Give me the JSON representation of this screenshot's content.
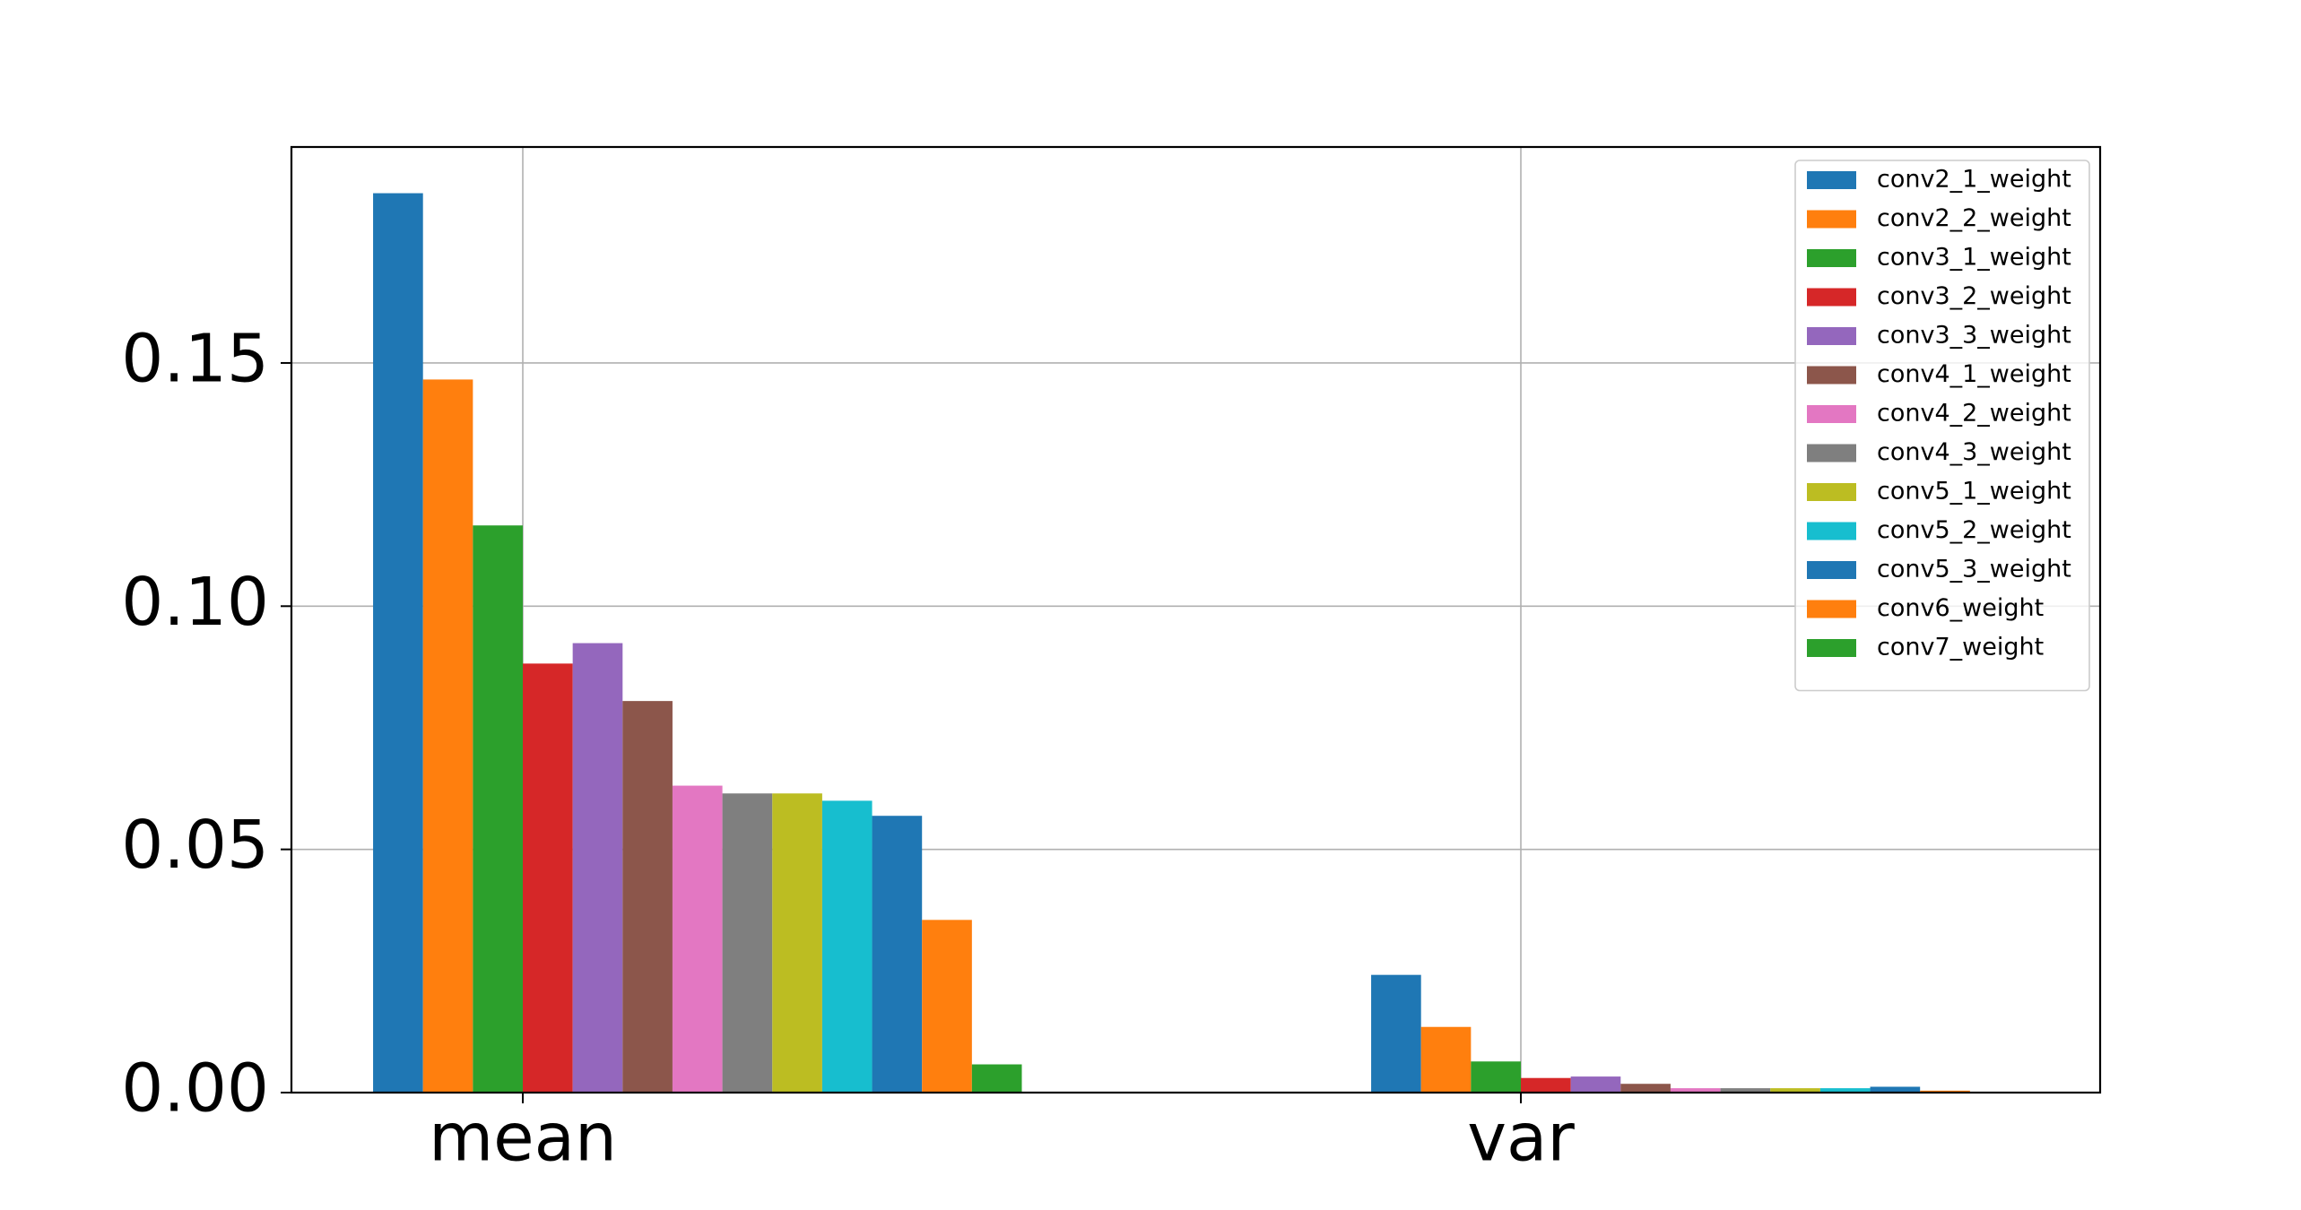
{
  "chart_data": {
    "type": "bar",
    "categories": [
      "mean",
      "var"
    ],
    "series": [
      {
        "name": "conv2_1_weight",
        "color": "#1f77b4",
        "values": [
          0.1849,
          0.0242
        ]
      },
      {
        "name": "conv2_2_weight",
        "color": "#ff7f0e",
        "values": [
          0.1466,
          0.0135
        ]
      },
      {
        "name": "conv3_1_weight",
        "color": "#2ca02c",
        "values": [
          0.1166,
          0.0064
        ]
      },
      {
        "name": "conv3_2_weight",
        "color": "#d62728",
        "values": [
          0.0882,
          0.003
        ]
      },
      {
        "name": "conv3_3_weight",
        "color": "#9467bd",
        "values": [
          0.0924,
          0.0033
        ]
      },
      {
        "name": "conv4_1_weight",
        "color": "#8c564b",
        "values": [
          0.0805,
          0.0018
        ]
      },
      {
        "name": "conv4_2_weight",
        "color": "#e377c2",
        "values": [
          0.0631,
          0.0009
        ]
      },
      {
        "name": "conv4_3_weight",
        "color": "#7f7f7f",
        "values": [
          0.0615,
          0.0009
        ]
      },
      {
        "name": "conv5_1_weight",
        "color": "#bcbd22",
        "values": [
          0.0615,
          0.0009
        ]
      },
      {
        "name": "conv5_2_weight",
        "color": "#17becf",
        "values": [
          0.06,
          0.0009
        ]
      },
      {
        "name": "conv5_3_weight",
        "color": "#1f77b4",
        "values": [
          0.0569,
          0.0012
        ]
      },
      {
        "name": "conv6_weight",
        "color": "#ff7f0e",
        "values": [
          0.0355,
          0.0004
        ]
      },
      {
        "name": "conv7_weight",
        "color": "#2ca02c",
        "values": [
          0.0058,
          0.0001
        ]
      }
    ],
    "ylim": [
      0,
      0.1944
    ],
    "yticks": [
      {
        "value": 0,
        "label": "0.00"
      },
      0.05,
      {
        "value": 0.1,
        "label": "0.10"
      },
      0.15
    ],
    "grid": true,
    "legend": "upper right"
  }
}
